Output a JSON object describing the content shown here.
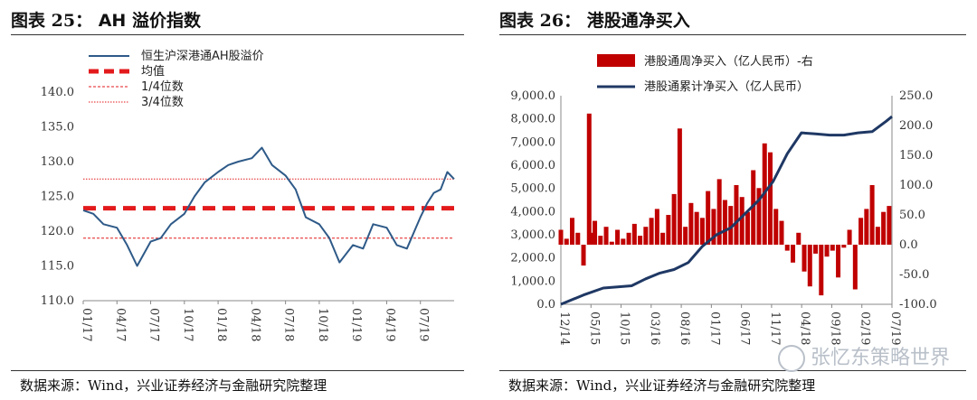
{
  "left": {
    "title_prefix": "图表",
    "title_num": "25：",
    "title_text": "AH 溢价指数",
    "source": "数据来源：Wind，兴业证券经济与金融研究院整理"
  },
  "right": {
    "title_prefix": "图表",
    "title_num": "26：",
    "title_text": "港股通净买入",
    "source": "数据来源：Wind，兴业证券经济与金融研究院整理",
    "watermark": "张忆东策略世界"
  },
  "colors": {
    "navy": "#1F3864",
    "red": "#E31A1C",
    "bar": "#C00000",
    "steel": "#2E5A88"
  },
  "chart_data": [
    {
      "type": "line",
      "name": "AH溢价指数",
      "legend": [
        "恒生沪深港通AH股溢价",
        "均值",
        "1/4位数",
        "3/4位数"
      ],
      "y_ticks": [
        "140.0",
        "135.0",
        "130.0",
        "125.0",
        "120.0",
        "115.0",
        "110.0"
      ],
      "ylim": [
        110,
        140
      ],
      "x_ticks": [
        "01/17",
        "04/17",
        "07/17",
        "10/17",
        "01/18",
        "04/18",
        "07/18",
        "10/18",
        "01/19",
        "04/19",
        "07/19"
      ],
      "reference_lines": {
        "mean": 123.3,
        "q1": 119.0,
        "q3": 127.5
      },
      "series": [
        {
          "name": "恒生沪深港通AH股溢价",
          "x": [
            0,
            0.3,
            0.6,
            1,
            1.3,
            1.6,
            2,
            2.3,
            2.6,
            3,
            3.3,
            3.6,
            4,
            4.3,
            4.6,
            5,
            5.3,
            5.6,
            6,
            6.3,
            6.6,
            7,
            7.3,
            7.6,
            8,
            8.3,
            8.6,
            9,
            9.3,
            9.6,
            10,
            10.2,
            10.4,
            10.6,
            10.8,
            11
          ],
          "values": [
            123.0,
            122.5,
            121.0,
            120.5,
            118.0,
            115.0,
            118.5,
            119.0,
            121.0,
            122.5,
            125.0,
            127.0,
            128.5,
            129.5,
            130.0,
            130.5,
            132.0,
            129.5,
            128.0,
            126.0,
            122.0,
            121.0,
            119.0,
            115.5,
            118.0,
            117.5,
            121.0,
            120.5,
            118.0,
            117.5,
            122.0,
            124.0,
            125.5,
            126.0,
            128.5,
            127.5
          ]
        }
      ]
    },
    {
      "type": "bar+line",
      "name": "港股通净买入",
      "legend": [
        "港股通周净买入（亿人民币）-右",
        "港股通累计净买入（亿人民币）"
      ],
      "y_left_ticks": [
        "9,000.0",
        "8,000.0",
        "7,000.0",
        "6,000.0",
        "5,000.0",
        "4,000.0",
        "3,000.0",
        "2,000.0",
        "1,000.0",
        "0.0"
      ],
      "ylim_left": [
        0,
        9000
      ],
      "y_right_ticks": [
        "250.0",
        "200.0",
        "150.0",
        "100.0",
        "50.0",
        "0.0",
        "-50.0",
        "-100.0"
      ],
      "ylim_right": [
        -100,
        250
      ],
      "x_ticks": [
        "12/14",
        "05/15",
        "10/15",
        "03/16",
        "08/16",
        "01/17",
        "06/17",
        "11/17",
        "04/18",
        "09/18",
        "02/19",
        "07/19"
      ],
      "cumulative": {
        "x": [
          0,
          0.8,
          1.5,
          2,
          2.5,
          3,
          3.5,
          4,
          4.5,
          5,
          5.5,
          6,
          6.5,
          7,
          7.5,
          8,
          8.5,
          9,
          9.5,
          10,
          10.5,
          11,
          11.5,
          11.7
        ],
        "values": [
          0,
          400,
          700,
          750,
          800,
          1100,
          1350,
          1500,
          1800,
          2500,
          3000,
          3300,
          3900,
          4500,
          5300,
          6500,
          7400,
          7350,
          7300,
          7300,
          7400,
          7450,
          7900,
          8100
        ]
      },
      "weekly": {
        "x": [
          0,
          0.2,
          0.4,
          0.6,
          0.8,
          1.0,
          1.1,
          1.2,
          1.4,
          1.6,
          1.8,
          2.0,
          2.2,
          2.4,
          2.6,
          2.8,
          3.0,
          3.2,
          3.4,
          3.6,
          3.8,
          4.0,
          4.2,
          4.4,
          4.6,
          4.8,
          5.0,
          5.2,
          5.4,
          5.6,
          5.8,
          6.0,
          6.2,
          6.4,
          6.6,
          6.8,
          7.0,
          7.2,
          7.4,
          7.6,
          7.8,
          8.0,
          8.2,
          8.4,
          8.6,
          8.8,
          9.0,
          9.2,
          9.4,
          9.6,
          9.8,
          10.0,
          10.2,
          10.4,
          10.6,
          10.8,
          11.0,
          11.2,
          11.4,
          11.6
        ],
        "values": [
          25,
          10,
          45,
          20,
          -35,
          220,
          20,
          40,
          15,
          30,
          5,
          25,
          10,
          20,
          35,
          15,
          30,
          45,
          60,
          20,
          50,
          85,
          195,
          30,
          70,
          55,
          45,
          90,
          60,
          110,
          75,
          65,
          100,
          80,
          55,
          125,
          95,
          170,
          155,
          60,
          40,
          -10,
          -30,
          20,
          -45,
          -70,
          -15,
          -85,
          -20,
          -10,
          -55,
          -5,
          25,
          -75,
          45,
          60,
          100,
          30,
          55,
          65
        ]
      }
    }
  ]
}
